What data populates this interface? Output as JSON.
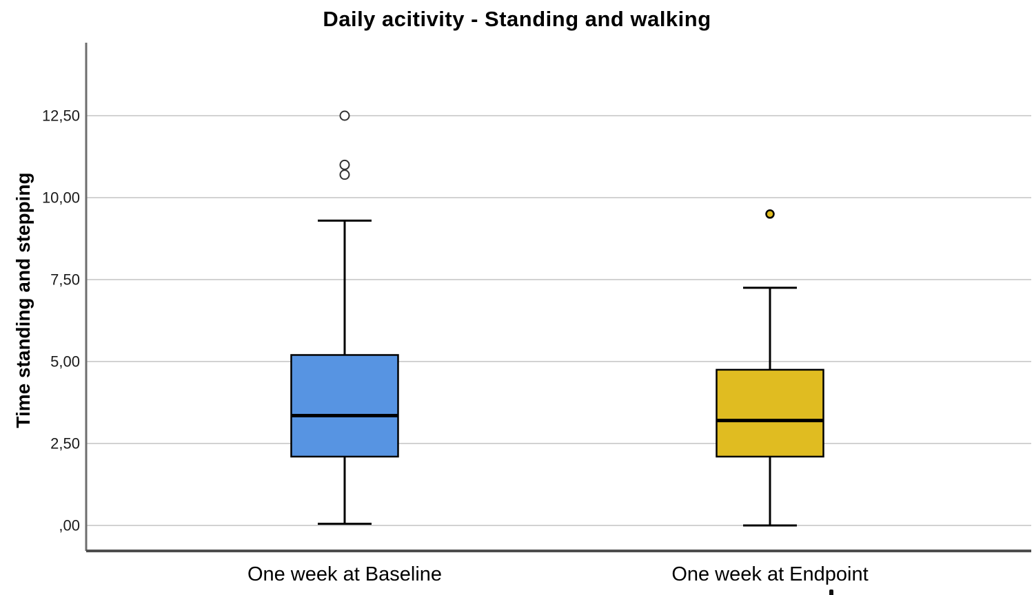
{
  "chart_data": {
    "type": "boxplot",
    "title": "Daily acitivity - Standing and walking",
    "ylabel": "Time standing and stepping",
    "xlabel": "",
    "categories": [
      "One week at Baseline",
      "One week at Endpoint"
    ],
    "y_axis": {
      "tick_labels": [
        ",00",
        "2,50",
        "5,00",
        "7,50",
        "10,00",
        "12,50"
      ],
      "tick_values": [
        0,
        2.5,
        5,
        7.5,
        10,
        12.5
      ],
      "ylim": [
        0,
        14.7
      ],
      "decimal_separator": ",",
      "grid": true
    },
    "series": [
      {
        "name": "One week at Baseline",
        "box_color": "#5794E2",
        "whisker_low": 0.05,
        "q1": 2.1,
        "median": 3.35,
        "q3": 5.2,
        "whisker_high": 9.3,
        "outliers": [
          10.7,
          11.0,
          12.5
        ],
        "outlier_style": "open"
      },
      {
        "name": "One week at Endpoint",
        "box_color": "#E0BC21",
        "whisker_low": 0.0,
        "q1": 2.1,
        "median": 3.2,
        "q3": 4.75,
        "whisker_high": 7.25,
        "outliers": [
          9.5
        ],
        "outlier_style": "filled"
      }
    ]
  },
  "colors": {
    "background": "#FFFFFF",
    "gridline": "#D2D2D2",
    "axis_line": "#6E6E6E",
    "bottom_axis_line": "#4D4D4D",
    "box_outline": "#000000",
    "median_line": "#000000",
    "open_outlier_stroke": "#333333",
    "text": "#000000"
  }
}
